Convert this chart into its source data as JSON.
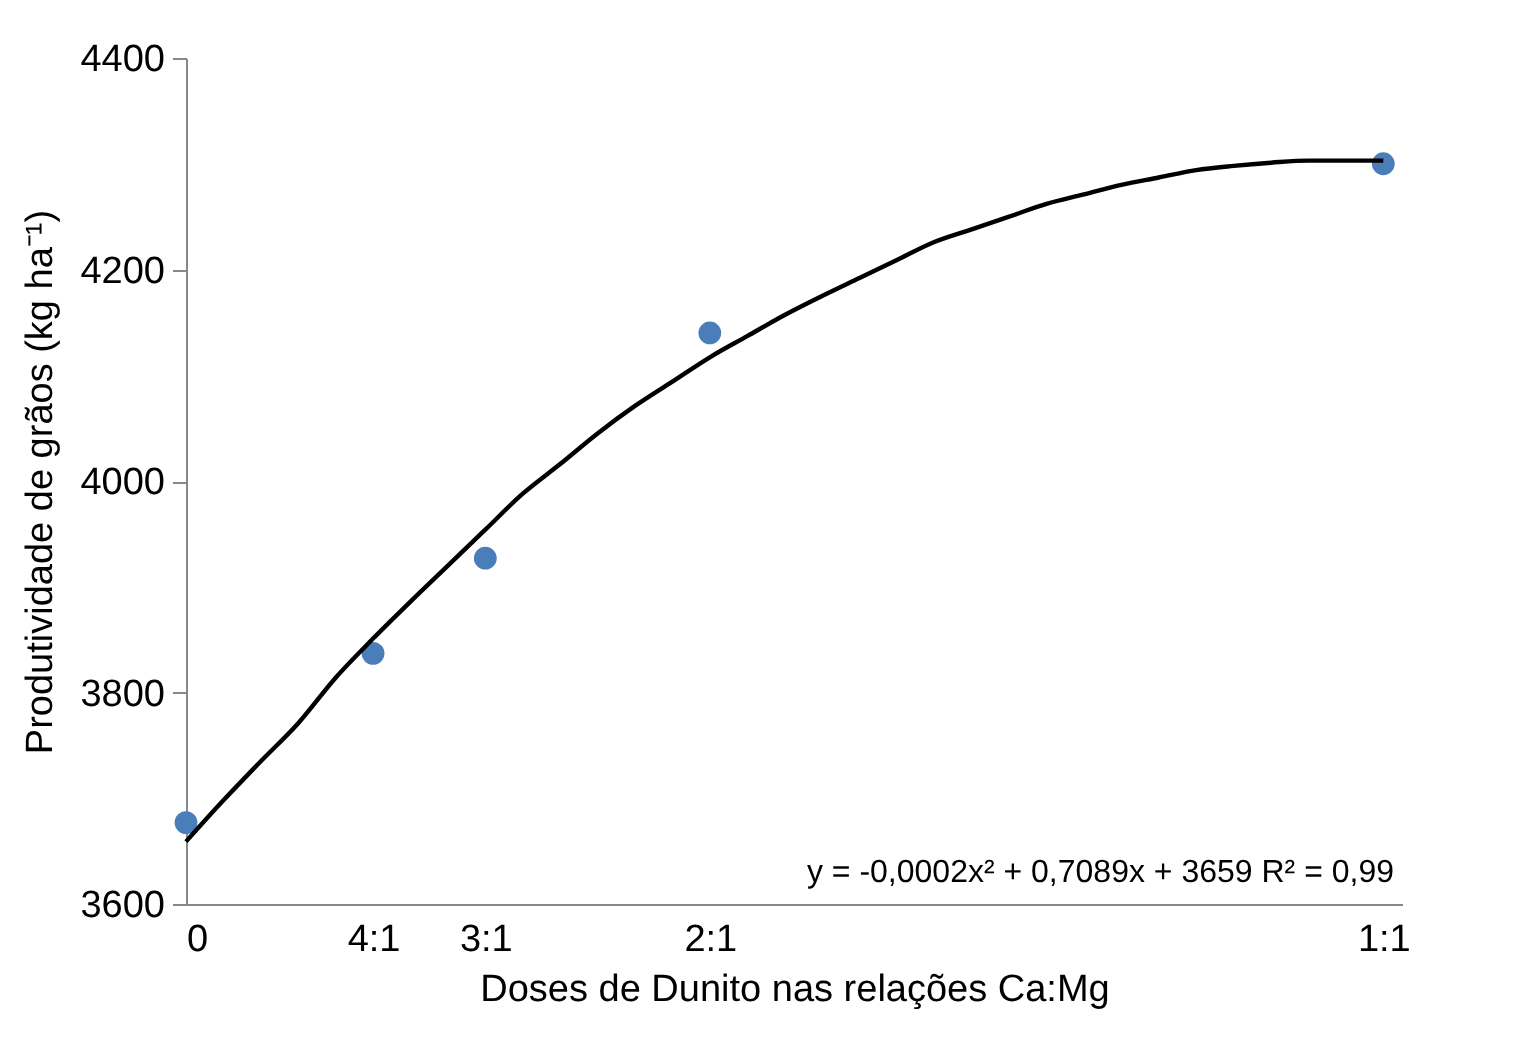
{
  "chart_data": {
    "type": "scatter",
    "xlabel": "Doses de Dunito nas relações Ca:Mg",
    "ylabel": "Produtividade de grãos (kg ha⁻¹)",
    "categories": [
      "0",
      null,
      null,
      null,
      null,
      "4:1",
      null,
      null,
      "3:1",
      null,
      null,
      null,
      null,
      null,
      "2:1",
      null,
      null,
      null,
      null,
      null,
      null,
      null,
      null,
      null,
      null,
      null,
      null,
      null,
      null,
      null,
      null,
      null,
      "1:1"
    ],
    "series": [
      {
        "marker": "circle",
        "color": "#4a7ebb",
        "values": [
          3677,
          null,
          null,
          null,
          null,
          3837,
          null,
          null,
          3927,
          null,
          null,
          null,
          null,
          null,
          4140,
          null,
          null,
          null,
          null,
          null,
          null,
          null,
          null,
          null,
          null,
          null,
          null,
          null,
          null,
          null,
          null,
          null,
          4300
        ]
      },
      {
        "type": "line",
        "marker": "none",
        "color": "#000000",
        "values": [
          3659,
          3698,
          3735,
          3771,
          3814,
          3851,
          3886,
          3920,
          3954,
          3988,
          4016,
          4045,
          4071,
          4094,
          4117,
          4137,
          4157,
          4175,
          4192,
          4209,
          4226,
          4238,
          4250,
          4262,
          4271,
          4280,
          4287,
          4294,
          4298,
          4301,
          4303,
          4303,
          4303
        ]
      }
    ],
    "ylim": [
      3600,
      4400
    ],
    "yticks": [
      3600,
      3800,
      4000,
      4200,
      4400
    ],
    "annotations": [
      "y = -0,0002x² + 0,7089x + 3659 R² = 0,99"
    ],
    "grid": false
  }
}
